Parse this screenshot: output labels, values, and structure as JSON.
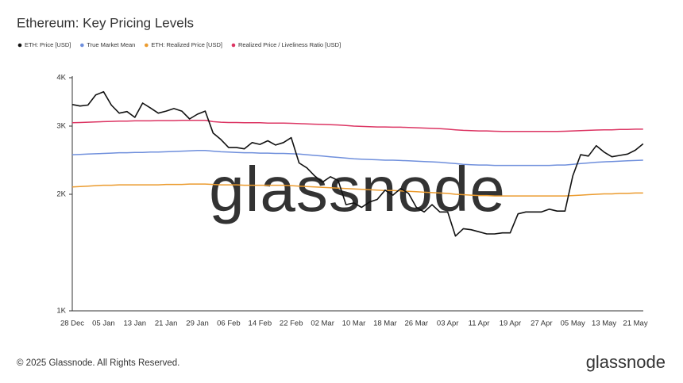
{
  "chart_data": {
    "type": "line",
    "title": "Ethereum: Key Pricing Levels",
    "categories": [
      "28 Dec",
      null,
      null,
      null,
      "05 Jan",
      null,
      null,
      null,
      "13 Jan",
      null,
      null,
      null,
      "21 Jan",
      null,
      null,
      null,
      "29 Jan",
      null,
      null,
      null,
      "06 Feb",
      null,
      null,
      null,
      "14 Feb",
      null,
      null,
      null,
      "22 Feb",
      null,
      null,
      null,
      "02 Mar",
      null,
      null,
      null,
      "10 Mar",
      null,
      null,
      null,
      "18 Mar",
      null,
      null,
      null,
      "26 Mar",
      null,
      null,
      null,
      "03 Apr",
      null,
      null,
      null,
      "11 Apr",
      null,
      null,
      null,
      "19 Apr",
      null,
      null,
      null,
      "27 Apr",
      null,
      null,
      null,
      "05 May",
      null,
      null,
      null,
      "13 May",
      null,
      null,
      null,
      "21 May",
      null
    ],
    "series": [
      {
        "name": "ETH: Price [USD]",
        "color": "#111111",
        "values": [
          3410,
          3380,
          3400,
          3610,
          3680,
          3400,
          3240,
          3270,
          3160,
          3440,
          3340,
          3240,
          3280,
          3330,
          3280,
          3130,
          3220,
          3280,
          2880,
          2770,
          2640,
          2640,
          2620,
          2720,
          2690,
          2750,
          2680,
          2720,
          2800,
          2410,
          2340,
          2230,
          2150,
          2220,
          2170,
          1880,
          1900,
          1850,
          1910,
          1940,
          2050,
          1990,
          2070,
          2010,
          1850,
          1800,
          1880,
          1800,
          1800,
          1560,
          1630,
          1620,
          1600,
          1580,
          1580,
          1590,
          1590,
          1780,
          1800,
          1800,
          1800,
          1830,
          1810,
          1810,
          2230,
          2530,
          2510,
          2670,
          2570,
          2500,
          2520,
          2540,
          2600,
          2700
        ]
      },
      {
        "name": "True Market Mean",
        "color": "#6f8fdc",
        "values": [
          2530,
          2535,
          2540,
          2545,
          2550,
          2555,
          2560,
          2560,
          2565,
          2565,
          2570,
          2570,
          2575,
          2580,
          2585,
          2590,
          2595,
          2595,
          2585,
          2575,
          2570,
          2565,
          2560,
          2560,
          2555,
          2555,
          2550,
          2550,
          2545,
          2540,
          2530,
          2520,
          2510,
          2500,
          2490,
          2480,
          2470,
          2465,
          2460,
          2455,
          2450,
          2450,
          2445,
          2440,
          2435,
          2430,
          2425,
          2420,
          2410,
          2400,
          2390,
          2385,
          2380,
          2380,
          2375,
          2375,
          2375,
          2375,
          2375,
          2375,
          2375,
          2375,
          2380,
          2380,
          2390,
          2400,
          2410,
          2420,
          2425,
          2430,
          2435,
          2440,
          2445,
          2450
        ]
      },
      {
        "name": "ETH: Realized Price [USD]",
        "color": "#eb9b2e",
        "values": [
          2090,
          2095,
          2100,
          2105,
          2110,
          2110,
          2115,
          2115,
          2115,
          2115,
          2115,
          2115,
          2120,
          2120,
          2120,
          2125,
          2125,
          2125,
          2120,
          2115,
          2115,
          2115,
          2110,
          2110,
          2110,
          2110,
          2110,
          2110,
          2105,
          2100,
          2095,
          2090,
          2085,
          2080,
          2075,
          2070,
          2065,
          2060,
          2055,
          2050,
          2045,
          2045,
          2040,
          2035,
          2030,
          2025,
          2020,
          2015,
          2010,
          2000,
          1995,
          1990,
          1985,
          1985,
          1980,
          1980,
          1980,
          1980,
          1980,
          1980,
          1980,
          1980,
          1980,
          1980,
          1985,
          1990,
          1995,
          2000,
          2005,
          2005,
          2010,
          2010,
          2015,
          2015
        ]
      },
      {
        "name": "Realized Price / Liveliness Ratio [USD]",
        "color": "#dc3563",
        "values": [
          3060,
          3065,
          3070,
          3075,
          3080,
          3085,
          3090,
          3090,
          3095,
          3095,
          3095,
          3100,
          3100,
          3100,
          3105,
          3105,
          3105,
          3105,
          3080,
          3070,
          3065,
          3065,
          3060,
          3060,
          3060,
          3055,
          3055,
          3055,
          3050,
          3045,
          3040,
          3035,
          3030,
          3025,
          3020,
          3010,
          3000,
          2995,
          2990,
          2985,
          2985,
          2980,
          2980,
          2975,
          2970,
          2965,
          2960,
          2955,
          2945,
          2935,
          2925,
          2920,
          2915,
          2915,
          2910,
          2905,
          2905,
          2905,
          2905,
          2905,
          2905,
          2905,
          2905,
          2910,
          2915,
          2920,
          2925,
          2930,
          2935,
          2935,
          2940,
          2940,
          2945,
          2945
        ]
      }
    ],
    "ylim": [
      1000,
      4000
    ],
    "log_scale": true,
    "yticks": [
      {
        "value": 1000,
        "label": "1K"
      },
      {
        "value": 2000,
        "label": "2K"
      },
      {
        "value": 3000,
        "label": "3K"
      },
      {
        "value": 4000,
        "label": "4K"
      }
    ],
    "grid": false,
    "legend": "top-left",
    "watermark": "glassnode",
    "footer": "© 2025 Glassnode. All Rights Reserved.",
    "logo": "glassnode"
  }
}
